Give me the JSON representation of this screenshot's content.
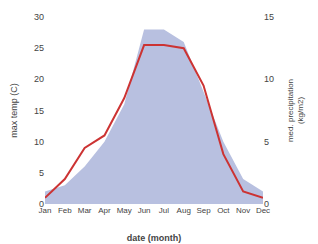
{
  "chart_data": {
    "type": "line",
    "categories": [
      "Jan",
      "Feb",
      "Mar",
      "Apr",
      "May",
      "Jun",
      "Jul",
      "Aug",
      "Sep",
      "Oct",
      "Nov",
      "Dec"
    ],
    "series": [
      {
        "type": "line",
        "color": "#cc3333",
        "values": [
          1,
          4,
          9,
          11,
          17,
          25.5,
          25.5,
          25,
          19,
          8,
          2,
          1
        ]
      },
      {
        "type": "area",
        "color": "#b8c0e0",
        "values": [
          1,
          1.5,
          3,
          5,
          8,
          14,
          14,
          13,
          9,
          5,
          2,
          1
        ],
        "axis": "y2"
      }
    ],
    "xlabel": "date (month)",
    "ylabel": "max temp (C)",
    "y2label": "med. precipitation\n(kg/m2)",
    "ylim": [
      0,
      30
    ],
    "yticks": [
      0,
      5,
      10,
      15,
      20,
      25,
      30
    ],
    "y2lim": [
      0,
      15
    ],
    "y2ticks": [
      0,
      5,
      10,
      15
    ],
    "grid": false
  }
}
